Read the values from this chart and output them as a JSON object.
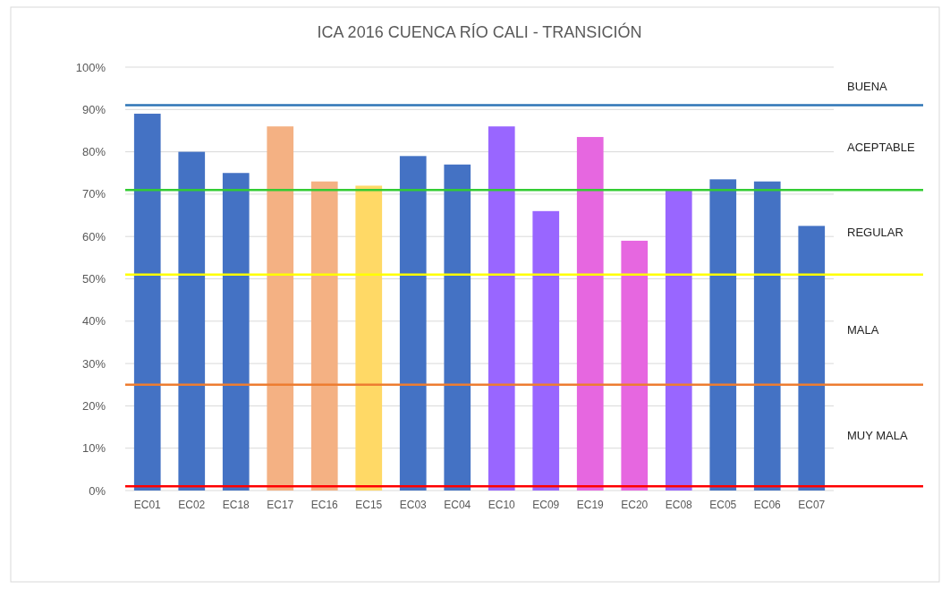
{
  "chart_data": {
    "type": "bar",
    "title": "ICA 2016 CUENCA RÍO CALI - TRANSICIÓN",
    "categories": [
      "EC01",
      "EC02",
      "EC18",
      "EC17",
      "EC16",
      "EC15",
      "EC03",
      "EC04",
      "EC10",
      "EC09",
      "EC19",
      "EC20",
      "EC08",
      "EC05",
      "EC06",
      "EC07"
    ],
    "values": [
      89,
      80,
      75,
      86,
      73,
      72,
      79,
      77,
      86,
      66,
      83.5,
      59,
      71,
      73.5,
      73,
      62.5
    ],
    "colors": [
      "#4472c4",
      "#4472c4",
      "#4472c4",
      "#f4b183",
      "#f4b183",
      "#ffd966",
      "#4472c4",
      "#4472c4",
      "#9966ff",
      "#9966ff",
      "#e667e0",
      "#e667e0",
      "#9966ff",
      "#4472c4",
      "#4472c4",
      "#4472c4"
    ],
    "ylim": [
      0,
      100
    ],
    "yticks": [
      {
        "value": 0,
        "label": "0%"
      },
      {
        "value": 10,
        "label": "10%"
      },
      {
        "value": 20,
        "label": "20%"
      },
      {
        "value": 30,
        "label": "30%"
      },
      {
        "value": 40,
        "label": "40%"
      },
      {
        "value": 50,
        "label": "50%"
      },
      {
        "value": 60,
        "label": "60%"
      },
      {
        "value": 70,
        "label": "70%"
      },
      {
        "value": 80,
        "label": "80%"
      },
      {
        "value": 90,
        "label": "90%"
      },
      {
        "value": 100,
        "label": "100%"
      }
    ],
    "grid": "y",
    "ref_lines": [
      {
        "axis": "y",
        "value": 91,
        "color": "#2e75b6"
      },
      {
        "axis": "y",
        "value": 71,
        "color": "#33cc33"
      },
      {
        "axis": "y",
        "value": 51,
        "color": "#ffff00"
      },
      {
        "axis": "y",
        "value": 25,
        "color": "#ed7d31"
      },
      {
        "axis": "y",
        "value": 1,
        "color": "#ff0000"
      }
    ],
    "annotations": [
      "BUENA",
      "ACEPTABLE",
      "REGULAR",
      "MALA",
      "MUY MALA"
    ]
  }
}
